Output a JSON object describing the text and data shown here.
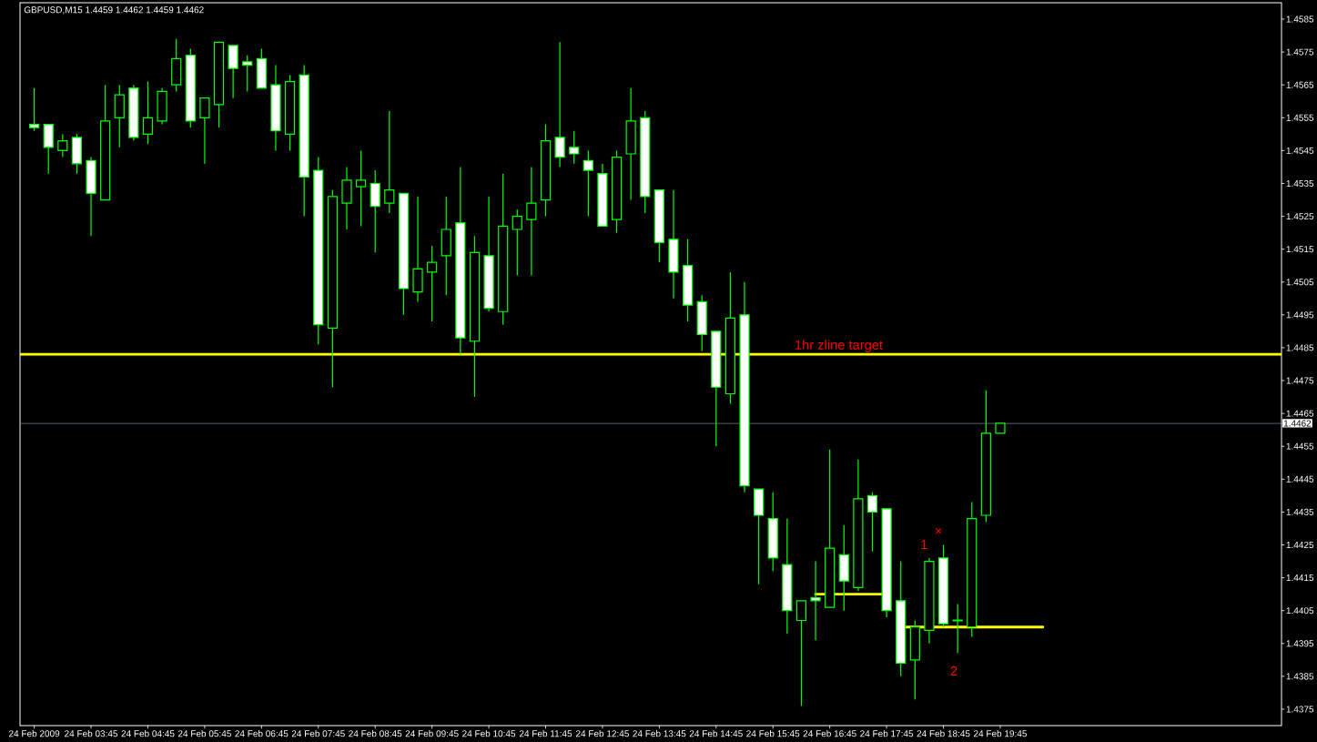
{
  "chart_data": {
    "type": "candlestick",
    "title": "GBPUSD,M15  1.4459 1.4462 1.4459 1.4462",
    "x": [
      "2009-02-24T02:45",
      "2009-02-24T03:00",
      "2009-02-24T03:15",
      "2009-02-24T03:30",
      "2009-02-24T03:45",
      "2009-02-24T04:00",
      "2009-02-24T04:15",
      "2009-02-24T04:30",
      "2009-02-24T04:45",
      "2009-02-24T05:00",
      "2009-02-24T05:15",
      "2009-02-24T05:30",
      "2009-02-24T05:45",
      "2009-02-24T06:00",
      "2009-02-24T06:15",
      "2009-02-24T06:30",
      "2009-02-24T06:45",
      "2009-02-24T07:00",
      "2009-02-24T07:15",
      "2009-02-24T07:30",
      "2009-02-24T07:45",
      "2009-02-24T08:00",
      "2009-02-24T08:15",
      "2009-02-24T08:30",
      "2009-02-24T08:45",
      "2009-02-24T09:00",
      "2009-02-24T09:15",
      "2009-02-24T09:30",
      "2009-02-24T09:45",
      "2009-02-24T10:00",
      "2009-02-24T10:15",
      "2009-02-24T10:30",
      "2009-02-24T10:45",
      "2009-02-24T11:00",
      "2009-02-24T11:15",
      "2009-02-24T11:30",
      "2009-02-24T11:45",
      "2009-02-24T12:00",
      "2009-02-24T12:15",
      "2009-02-24T12:30",
      "2009-02-24T12:45",
      "2009-02-24T13:00",
      "2009-02-24T13:15",
      "2009-02-24T13:30",
      "2009-02-24T13:45",
      "2009-02-24T14:00",
      "2009-02-24T14:15",
      "2009-02-24T14:30",
      "2009-02-24T14:45",
      "2009-02-24T15:00",
      "2009-02-24T15:15",
      "2009-02-24T15:30",
      "2009-02-24T15:45",
      "2009-02-24T16:00",
      "2009-02-24T16:15",
      "2009-02-24T16:30",
      "2009-02-24T16:45",
      "2009-02-24T17:00",
      "2009-02-24T17:15",
      "2009-02-24T17:30",
      "2009-02-24T17:45",
      "2009-02-24T18:00",
      "2009-02-24T18:15",
      "2009-02-24T18:30",
      "2009-02-24T18:45",
      "2009-02-24T19:00",
      "2009-02-24T19:15",
      "2009-02-24T19:30",
      "2009-02-24T19:45"
    ],
    "ohlc": [
      [
        1.4553,
        1.4564,
        1.4551,
        1.4552
      ],
      [
        1.4553,
        1.4553,
        1.4538,
        1.4546
      ],
      [
        1.4545,
        1.455,
        1.4543,
        1.4548
      ],
      [
        1.4549,
        1.455,
        1.4538,
        1.4541
      ],
      [
        1.4542,
        1.4543,
        1.4519,
        1.4532
      ],
      [
        1.453,
        1.4565,
        1.453,
        1.4554
      ],
      [
        1.4555,
        1.4565,
        1.4546,
        1.4562
      ],
      [
        1.4564,
        1.4565,
        1.4548,
        1.4549
      ],
      [
        1.455,
        1.4566,
        1.4547,
        1.4555
      ],
      [
        1.4554,
        1.4564,
        1.4553,
        1.4563
      ],
      [
        1.4565,
        1.4579,
        1.4563,
        1.4573
      ],
      [
        1.4574,
        1.4576,
        1.4552,
        1.4554
      ],
      [
        1.4555,
        1.4561,
        1.4541,
        1.4561
      ],
      [
        1.4559,
        1.4578,
        1.4552,
        1.4578
      ],
      [
        1.4577,
        1.4577,
        1.4561,
        1.457
      ],
      [
        1.4572,
        1.4574,
        1.4563,
        1.4571
      ],
      [
        1.4573,
        1.4576,
        1.4564,
        1.4564
      ],
      [
        1.4565,
        1.4571,
        1.4545,
        1.4551
      ],
      [
        1.455,
        1.4568,
        1.4545,
        1.4566
      ],
      [
        1.4568,
        1.4571,
        1.4525,
        1.4537
      ],
      [
        1.4539,
        1.4543,
        1.4486,
        1.4492
      ],
      [
        1.4491,
        1.4533,
        1.4473,
        1.4531
      ],
      [
        1.4529,
        1.454,
        1.4521,
        1.4536
      ],
      [
        1.4534,
        1.4545,
        1.4522,
        1.4536
      ],
      [
        1.4535,
        1.4539,
        1.4514,
        1.4528
      ],
      [
        1.4529,
        1.4557,
        1.4526,
        1.4533
      ],
      [
        1.4532,
        1.4532,
        1.4495,
        1.4503
      ],
      [
        1.4502,
        1.4531,
        1.4499,
        1.4509
      ],
      [
        1.4508,
        1.4516,
        1.4493,
        1.4511
      ],
      [
        1.4513,
        1.4531,
        1.4501,
        1.4521
      ],
      [
        1.4523,
        1.454,
        1.4483,
        1.4488
      ],
      [
        1.4487,
        1.4519,
        1.447,
        1.4514
      ],
      [
        1.4513,
        1.4531,
        1.4496,
        1.4497
      ],
      [
        1.4496,
        1.4538,
        1.4492,
        1.4522
      ],
      [
        1.4521,
        1.4527,
        1.4507,
        1.4525
      ],
      [
        1.4524,
        1.454,
        1.4507,
        1.4529
      ],
      [
        1.453,
        1.4553,
        1.4525,
        1.4548
      ],
      [
        1.4549,
        1.4578,
        1.454,
        1.4543
      ],
      [
        1.4546,
        1.4551,
        1.4541,
        1.4544
      ],
      [
        1.4542,
        1.4545,
        1.4525,
        1.4539
      ],
      [
        1.4538,
        1.4541,
        1.4522,
        1.4522
      ],
      [
        1.4524,
        1.4545,
        1.452,
        1.4543
      ],
      [
        1.4544,
        1.4564,
        1.453,
        1.4554
      ],
      [
        1.4555,
        1.4557,
        1.4526,
        1.4531
      ],
      [
        1.4533,
        1.4533,
        1.4511,
        1.4517
      ],
      [
        1.4518,
        1.4533,
        1.45,
        1.4508
      ],
      [
        1.451,
        1.4518,
        1.4493,
        1.4498
      ],
      [
        1.4499,
        1.4501,
        1.4484,
        1.4489
      ],
      [
        1.449,
        1.449,
        1.4455,
        1.4473
      ],
      [
        1.4471,
        1.4508,
        1.4468,
        1.4494
      ],
      [
        1.4495,
        1.4505,
        1.4441,
        1.4443
      ],
      [
        1.4442,
        1.4442,
        1.4413,
        1.4434
      ],
      [
        1.4433,
        1.4441,
        1.4417,
        1.4421
      ],
      [
        1.4419,
        1.4433,
        1.4398,
        1.4405
      ],
      [
        1.4402,
        1.4408,
        1.4376,
        1.4408
      ],
      [
        1.4409,
        1.442,
        1.4396,
        1.4408
      ],
      [
        1.4406,
        1.4454,
        1.4406,
        1.4424
      ],
      [
        1.4422,
        1.4431,
        1.4405,
        1.4414
      ],
      [
        1.4412,
        1.4451,
        1.4411,
        1.4439
      ],
      [
        1.444,
        1.4441,
        1.4423,
        1.4435
      ],
      [
        1.4436,
        1.4436,
        1.4403,
        1.4405
      ],
      [
        1.4408,
        1.442,
        1.4385,
        1.4389
      ],
      [
        1.439,
        1.4402,
        1.4378,
        1.44
      ],
      [
        1.4399,
        1.4421,
        1.4395,
        1.442
      ],
      [
        1.4421,
        1.4425,
        1.44,
        1.4401
      ],
      [
        1.4402,
        1.4407,
        1.4392,
        1.4402
      ],
      [
        1.44,
        1.4438,
        1.4397,
        1.4433
      ],
      [
        1.4434,
        1.4472,
        1.4432,
        1.4459
      ],
      [
        1.4459,
        1.4462,
        1.4459,
        1.4462
      ]
    ],
    "color": "#00ff00",
    "colors": [
      "#ffffff",
      "#ffffff",
      "#000000",
      "#ffffff",
      "#ffffff",
      "#000000",
      "#000000",
      "#ffffff",
      "#000000",
      "#000000",
      "#000000",
      "#ffffff",
      "#000000",
      "#000000",
      "#ffffff",
      "#ffffff",
      "#ffffff",
      "#ffffff",
      "#000000",
      "#ffffff",
      "#ffffff",
      "#000000",
      "#000000",
      "#000000",
      "#ffffff",
      "#000000",
      "#ffffff",
      "#000000",
      "#000000",
      "#000000",
      "#ffffff",
      "#000000",
      "#ffffff",
      "#000000",
      "#000000",
      "#000000",
      "#000000",
      "#ffffff",
      "#ffffff",
      "#ffffff",
      "#ffffff",
      "#000000",
      "#000000",
      "#ffffff",
      "#ffffff",
      "#ffffff",
      "#ffffff",
      "#ffffff",
      "#ffffff",
      "#000000",
      "#ffffff",
      "#ffffff",
      "#ffffff",
      "#ffffff",
      "#000000",
      "#ffffff",
      "#000000",
      "#ffffff",
      "#000000",
      "#ffffff",
      "#ffffff",
      "#ffffff",
      "#000000",
      "#000000",
      "#ffffff",
      "#000000",
      "#000000",
      "#000000",
      "#000000"
    ],
    "series": [
      {
        "type": "line",
        "color": "#ffff00",
        "x": [
          "2009-02-24T16:30",
          "2009-02-24T17:42"
        ],
        "values": [
          1.441,
          1.441
        ]
      },
      {
        "type": "line",
        "color": "#ffff00",
        "x": [
          "2009-02-24T18:05",
          "2009-02-24T20:30"
        ],
        "values": [
          1.44,
          1.44
        ]
      }
    ],
    "ref_lines": [
      {
        "axis": "y",
        "value": 1.4483,
        "label": "1hr zline target",
        "color": "#ffff00"
      },
      {
        "axis": "y",
        "value": 1.4462,
        "label": "1.4462",
        "color": "#8899aa"
      }
    ],
    "annotations": [
      "1",
      "×",
      "2"
    ],
    "xlim": [
      "2009-02-24T02:30",
      "2009-02-25T00:42"
    ],
    "xticks": [
      {
        "value": "2009-02-24T02:45",
        "label": "24 Feb 2009"
      },
      {
        "value": "2009-02-24T03:45",
        "label": "24 Feb 03:45"
      },
      {
        "value": "2009-02-24T04:45",
        "label": "24 Feb 04:45"
      },
      {
        "value": "2009-02-24T05:45",
        "label": "24 Feb 05:45"
      },
      {
        "value": "2009-02-24T06:45",
        "label": "24 Feb 06:45"
      },
      {
        "value": "2009-02-24T07:45",
        "label": "24 Feb 07:45"
      },
      {
        "value": "2009-02-24T08:45",
        "label": "24 Feb 08:45"
      },
      {
        "value": "2009-02-24T09:45",
        "label": "24 Feb 09:45"
      },
      {
        "value": "2009-02-24T10:45",
        "label": "24 Feb 10:45"
      },
      {
        "value": "2009-02-24T11:45",
        "label": "24 Feb 11:45"
      },
      {
        "value": "2009-02-24T12:45",
        "label": "24 Feb 12:45"
      },
      {
        "value": "2009-02-24T13:45",
        "label": "24 Feb 13:45"
      },
      {
        "value": "2009-02-24T14:45",
        "label": "24 Feb 14:45"
      },
      {
        "value": "2009-02-24T15:45",
        "label": "24 Feb 15:45"
      },
      {
        "value": "2009-02-24T16:45",
        "label": "24 Feb 16:45"
      },
      {
        "value": "2009-02-24T17:45",
        "label": "24 Feb 17:45"
      },
      {
        "value": "2009-02-24T18:45",
        "label": "24 Feb 18:45"
      },
      {
        "value": "2009-02-24T19:45",
        "label": "24 Feb 19:45"
      }
    ],
    "ylim": [
      1.437,
      1.459
    ],
    "yticks": [
      1.4375,
      1.4385,
      1.4395,
      1.4405,
      1.4415,
      1.4425,
      1.4435,
      1.4445,
      1.4455,
      1.4465,
      1.4475,
      1.4485,
      1.4495,
      1.4505,
      1.4515,
      1.4525,
      1.4535,
      1.4545,
      1.4555,
      1.4565,
      1.4575,
      1.4585
    ]
  }
}
